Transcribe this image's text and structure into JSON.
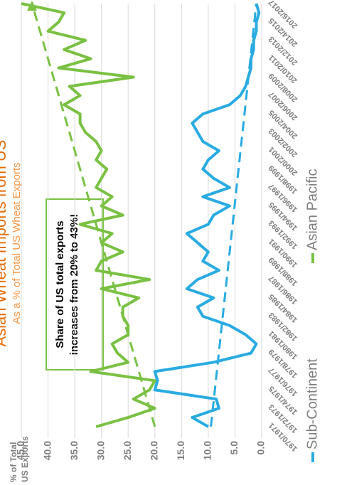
{
  "chart_data": {
    "type": "line",
    "title": "Asian Wheat Imports from US",
    "subtitle": "As a % of Total US Wheat Exports",
    "y_label": [
      "% of Total",
      "US Exports"
    ],
    "annotation": "Share of US total exports increases from 20% to 43%!",
    "categories": [
      "1970/1971",
      null,
      "1972/1973",
      null,
      "1974/1975",
      null,
      "1976/1977",
      null,
      "1978/1979",
      null,
      "1980/1981",
      null,
      "1982/1983",
      null,
      "1984/1985",
      null,
      "1986/1987",
      null,
      "1988/1989",
      null,
      "1990/1991",
      null,
      "1992/1993",
      null,
      "1994/1995",
      null,
      "1996/1997",
      null,
      "1998/1999",
      null,
      "2000/2001",
      null,
      "2002/2003",
      null,
      "2004/2005",
      null,
      "2006/2007",
      null,
      "2008/2009",
      null,
      "2010/2011",
      null,
      "2012/2013",
      null,
      "2014/2015",
      null,
      "2016/2017"
    ],
    "series": [
      {
        "name": "Sub-Continent",
        "color": "#29abe2",
        "trend": [
          9.5,
          1.0
        ],
        "values": [
          10,
          13,
          8,
          8.5,
          20,
          19.5,
          20,
          9,
          2,
          1,
          3,
          6,
          11,
          12,
          9,
          14,
          12,
          8,
          11,
          10,
          12,
          14,
          10,
          9,
          6,
          11,
          6,
          9,
          11,
          10,
          8,
          11,
          12,
          13,
          11,
          6,
          4,
          3,
          2.5,
          2,
          2,
          1.5,
          1.5,
          1,
          1,
          0.5,
          1
        ]
      },
      {
        "name": "Asian Pacific",
        "color": "#7ac143",
        "trend": [
          20,
          43
        ],
        "values": [
          31,
          25,
          20,
          24,
          21,
          20,
          32,
          25,
          27,
          28,
          25,
          25,
          26,
          26,
          23,
          30,
          21,
          31,
          30,
          26,
          30,
          28,
          34,
          26,
          30,
          28,
          31,
          30,
          29,
          31,
          30,
          31,
          33,
          34,
          34,
          37,
          34,
          36,
          24,
          38,
          32,
          37,
          33,
          40,
          38,
          37,
          45
        ]
      }
    ],
    "ylim": [
      0,
      45
    ],
    "yticks": [
      {
        "value": 0,
        "label": "0.0"
      },
      {
        "value": 5,
        "label": "5.0"
      },
      {
        "value": 10,
        "label": "10.0"
      },
      {
        "value": 15,
        "label": "15.0"
      },
      {
        "value": 20,
        "label": "20.0"
      },
      {
        "value": 25,
        "label": "25.0"
      },
      {
        "value": 30,
        "label": "30.0"
      },
      {
        "value": 35,
        "label": "35.0"
      },
      {
        "value": 40,
        "label": "40.0"
      },
      {
        "value": 45,
        "label": "45.0"
      }
    ],
    "grid": true
  }
}
